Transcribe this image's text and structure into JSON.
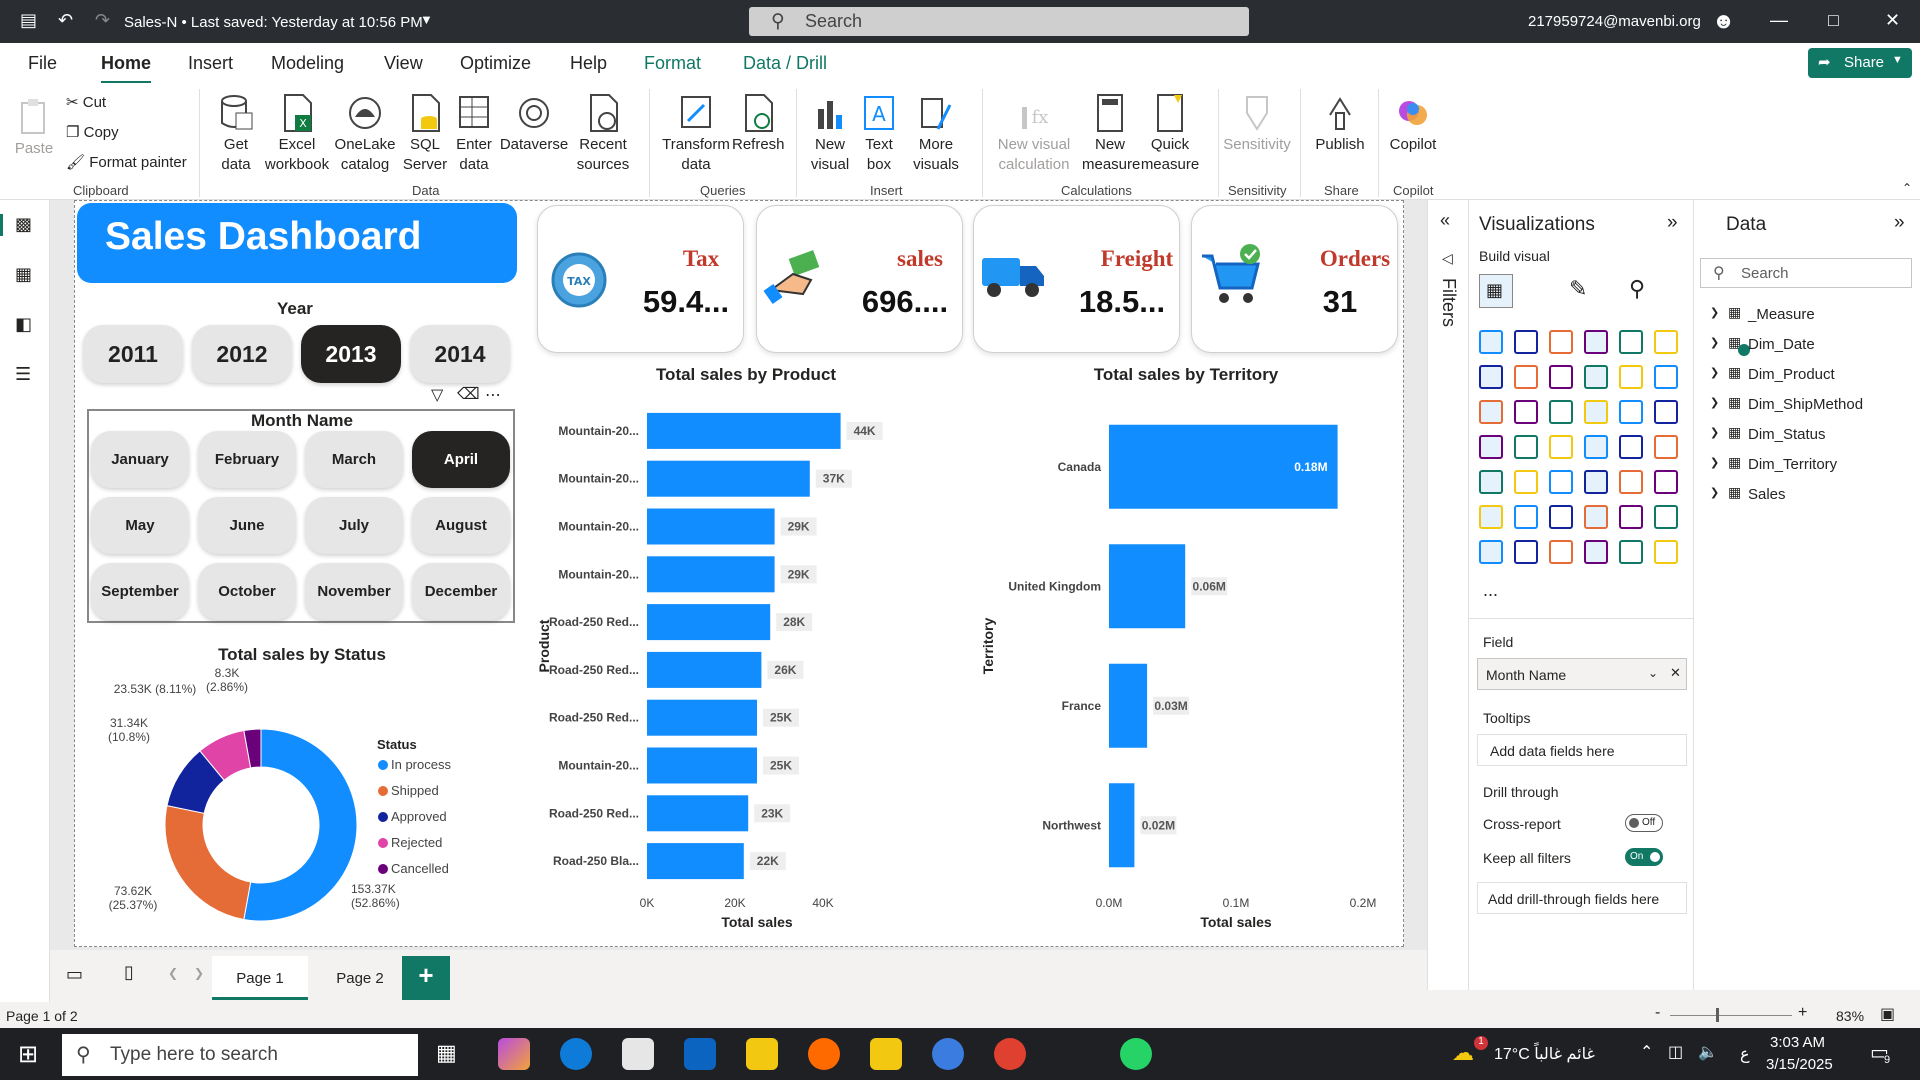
{
  "titlebar": {
    "title": "Sales-N • Last saved: Yesterday at 10:56 PM",
    "search_placeholder": "Search",
    "email": "217959724@mavenbi.org"
  },
  "menu": [
    "File",
    "Home",
    "Insert",
    "Modeling",
    "View",
    "Optimize",
    "Help",
    "Format",
    "Data / Drill"
  ],
  "share_label": "Share",
  "ribbon": {
    "paste": "Paste",
    "cut": "Cut",
    "copy": "Copy",
    "format_painter": "Format painter",
    "clipboard": "Clipboard",
    "get_data": [
      "Get",
      "data"
    ],
    "excel": [
      "Excel",
      "workbook"
    ],
    "onelake": [
      "OneLake",
      "catalog"
    ],
    "sql": [
      "SQL",
      "Server"
    ],
    "enter": [
      "Enter",
      "data"
    ],
    "dataverse": "Dataverse",
    "recent": [
      "Recent",
      "sources"
    ],
    "data_grp": "Data",
    "transform": [
      "Transform",
      "data"
    ],
    "refresh": "Refresh",
    "queries": "Queries",
    "new_visual": [
      "New",
      "visual"
    ],
    "text_box": [
      "Text",
      "box"
    ],
    "more_visuals": [
      "More",
      "visuals"
    ],
    "insert_grp": "Insert",
    "new_visual_calc": [
      "New visual",
      "calculation"
    ],
    "new_measure": [
      "New",
      "measure"
    ],
    "quick_measure": [
      "Quick",
      "measure"
    ],
    "calculations": "Calculations",
    "sensitivity": "Sensitivity",
    "sensitivity_grp": "Sensitivity",
    "publish": "Publish",
    "share_grp": "Share",
    "copilot": "Copilot",
    "copilot_grp": "Copilot"
  },
  "report": {
    "header": "Sales Dashboard",
    "year_label": "Year",
    "years": [
      "2011",
      "2012",
      "2013",
      "2014"
    ],
    "selected_year": "2013",
    "month_label": "Month Name",
    "months": [
      "January",
      "February",
      "March",
      "April",
      "May",
      "June",
      "July",
      "August",
      "September",
      "October",
      "November",
      "December"
    ],
    "selected_month": "April",
    "kpis": [
      {
        "label": "Tax",
        "value": "59.4..."
      },
      {
        "label": "sales",
        "value": "696...."
      },
      {
        "label": "Freight",
        "value": "18.5..."
      },
      {
        "label": "Orders",
        "value": "31"
      }
    ],
    "kpi_icon_text": "TAX"
  },
  "chart_data": [
    {
      "type": "bar",
      "title": "Total sales by Product",
      "xlabel": "Total sales",
      "ylabel": "Product",
      "categories": [
        "Mountain-20...",
        "Mountain-20...",
        "Mountain-20...",
        "Mountain-20...",
        "Road-250 Red...",
        "Road-250 Red...",
        "Road-250 Red...",
        "Mountain-20...",
        "Road-250 Red...",
        "Road-250 Bla..."
      ],
      "values": [
        44,
        37,
        29,
        29,
        28,
        26,
        25,
        25,
        23,
        22
      ],
      "data_labels": [
        "44K",
        "37K",
        "29K",
        "29K",
        "28K",
        "26K",
        "25K",
        "25K",
        "23K",
        "22K"
      ],
      "xlim": [
        0,
        50
      ],
      "xticks": [
        "0K",
        "20K",
        "40K"
      ]
    },
    {
      "type": "bar",
      "title": "Total sales by Territory",
      "xlabel": "Total sales",
      "ylabel": "Territory",
      "categories": [
        "Canada",
        "United Kingdom",
        "France",
        "Northwest"
      ],
      "values": [
        0.18,
        0.06,
        0.03,
        0.02
      ],
      "data_labels": [
        "0.18M",
        "0.06M",
        "0.03M",
        "0.02M"
      ],
      "xlim": [
        0,
        0.2
      ],
      "xticks": [
        "0.0M",
        "0.1M",
        "0.2M"
      ]
    },
    {
      "type": "pie",
      "title": "Total sales by Status",
      "legend_title": "Status",
      "labels": [
        "In process",
        "Shipped",
        "Approved",
        "Rejected",
        "Cancelled"
      ],
      "values": [
        52.86,
        25.37,
        10.8,
        8.11,
        2.86
      ],
      "colors": [
        "#118dff",
        "#e66c37",
        "#12239e",
        "#e044a7",
        "#6b007b"
      ],
      "annotations": [
        [
          "153.37K",
          "(52.86%)"
        ],
        [
          "73.62K",
          "(25.37%)"
        ],
        [
          "31.34K",
          "(10.8%)"
        ],
        [
          "23.53K (8.11%)",
          ""
        ],
        [
          "8.3K",
          "(2.86%)"
        ]
      ],
      "legend_placement": "right"
    }
  ],
  "filters_label": "Filters",
  "viz_pane": {
    "title": "Visualizations",
    "build": "Build visual",
    "field_label": "Field",
    "field_value": "Month Name",
    "tooltips": "Tooltips",
    "tooltips_placeholder": "Add data fields here",
    "drill": "Drill through",
    "cross": "Cross-report",
    "cross_state": "Off",
    "keep": "Keep all filters",
    "keep_state": "On",
    "drill_placeholder": "Add drill-through fields here",
    "more": "..."
  },
  "data_pane": {
    "title": "Data",
    "search": "Search",
    "tables": [
      "_Measure",
      "Dim_Date",
      "Dim_Product",
      "Dim_ShipMethod",
      "Dim_Status",
      "Dim_Territory",
      "Sales"
    ]
  },
  "pages": [
    "Page 1",
    "Page 2"
  ],
  "add_page": "+",
  "status": {
    "page": "Page 1 of 2",
    "zoom": "83%",
    "minus": "-",
    "plus": "+"
  },
  "taskbar": {
    "search": "Type here to search",
    "weather": "17°C  غائم غالباً",
    "time": "3:03 AM",
    "date": "3/15/2025",
    "lang": "ع",
    "notif": "9",
    "weather_badge": "1"
  },
  "colors": {
    "accent": "#117865",
    "bar": "#118dff",
    "header_bg": "#118dff"
  }
}
